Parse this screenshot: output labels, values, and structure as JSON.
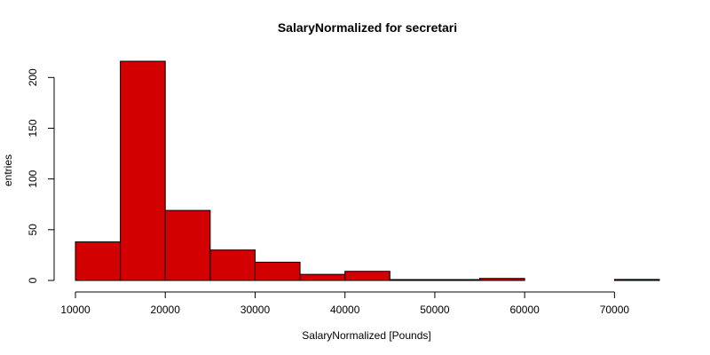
{
  "chart_data": {
    "type": "bar",
    "subtype": "histogram",
    "title": "SalaryNormalized for secretari",
    "xlabel": "SalaryNormalized [Pounds]",
    "ylabel": "entries",
    "xlim": [
      10000,
      75000
    ],
    "ylim": [
      0,
      216
    ],
    "bin_width": 5000,
    "bins": [
      {
        "x0": 10000,
        "x1": 15000,
        "count": 38
      },
      {
        "x0": 15000,
        "x1": 20000,
        "count": 216
      },
      {
        "x0": 20000,
        "x1": 25000,
        "count": 69
      },
      {
        "x0": 25000,
        "x1": 30000,
        "count": 30
      },
      {
        "x0": 30000,
        "x1": 35000,
        "count": 18
      },
      {
        "x0": 35000,
        "x1": 40000,
        "count": 6
      },
      {
        "x0": 40000,
        "x1": 45000,
        "count": 9
      },
      {
        "x0": 45000,
        "x1": 50000,
        "count": 0.5
      },
      {
        "x0": 50000,
        "x1": 55000,
        "count": 0.5
      },
      {
        "x0": 55000,
        "x1": 60000,
        "count": 2
      },
      {
        "x0": 60000,
        "x1": 65000,
        "count": 0
      },
      {
        "x0": 65000,
        "x1": 70000,
        "count": 0
      },
      {
        "x0": 70000,
        "x1": 75000,
        "count": 1
      }
    ],
    "x_ticks": [
      "10000",
      "20000",
      "30000",
      "40000",
      "50000",
      "60000",
      "70000"
    ],
    "y_ticks": [
      "0",
      "50",
      "100",
      "150",
      "200"
    ],
    "grid": false,
    "bar_color": "#d20000",
    "edge_color": "#000000"
  }
}
